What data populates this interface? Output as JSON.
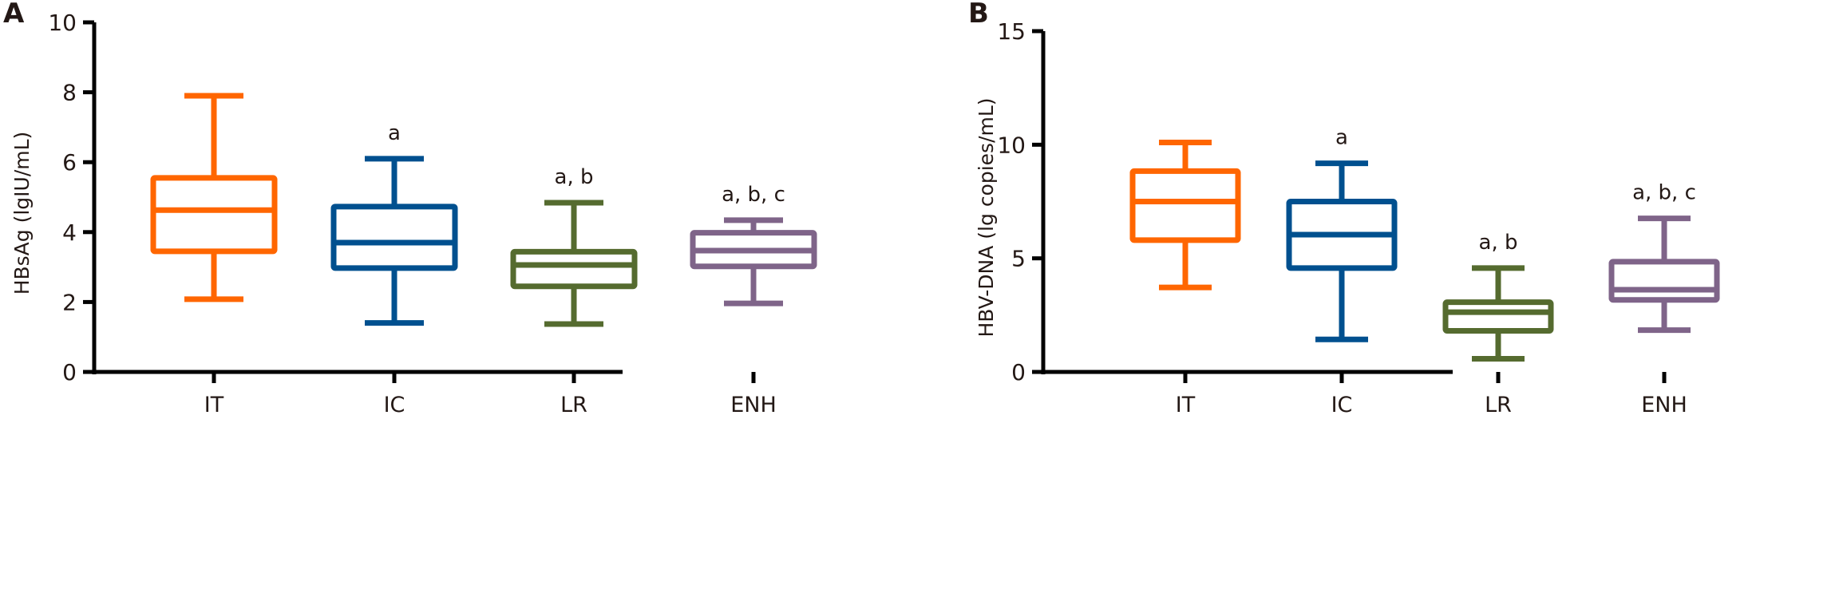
{
  "chart_data": [
    {
      "type": "box",
      "panel_label": "A",
      "title": "",
      "xlabel": "",
      "ylabel": "HBsAg (lgIU/mL)",
      "ylim": [
        0,
        10
      ],
      "yticks": [
        0,
        2,
        4,
        6,
        8,
        10
      ],
      "categories": [
        "IT",
        "IC",
        "LR",
        "ENH"
      ],
      "colors": [
        "#ff6600",
        "#00508f",
        "#556b2f",
        "#7f6489"
      ],
      "series": [
        {
          "name": "IT",
          "min": 2.08,
          "q1": 3.45,
          "median": 4.63,
          "q3": 5.55,
          "max": 7.9,
          "annotation": ""
        },
        {
          "name": "IC",
          "min": 1.4,
          "q1": 2.97,
          "median": 3.7,
          "q3": 4.73,
          "max": 6.1,
          "annotation": "a"
        },
        {
          "name": "LR",
          "min": 1.37,
          "q1": 2.45,
          "median": 3.06,
          "q3": 3.44,
          "max": 4.84,
          "annotation": "a, b"
        },
        {
          "name": "ENH",
          "min": 1.96,
          "q1": 3.02,
          "median": 3.47,
          "q3": 3.98,
          "max": 4.34,
          "annotation": "a, b, c"
        }
      ]
    },
    {
      "type": "box",
      "panel_label": "B",
      "title": "",
      "xlabel": "",
      "ylabel": "HBV-DNA (lg copies/mL)",
      "ylim": [
        0,
        15
      ],
      "yticks": [
        0,
        5,
        10,
        15
      ],
      "categories": [
        "IT",
        "IC",
        "LR",
        "ENH"
      ],
      "colors": [
        "#ff6600",
        "#00508f",
        "#556b2f",
        "#7f6489"
      ],
      "series": [
        {
          "name": "IT",
          "min": 3.72,
          "q1": 5.8,
          "median": 7.5,
          "q3": 8.84,
          "max": 10.1,
          "annotation": ""
        },
        {
          "name": "IC",
          "min": 1.43,
          "q1": 4.57,
          "median": 6.04,
          "q3": 7.5,
          "max": 9.18,
          "annotation": "a"
        },
        {
          "name": "LR",
          "min": 0.58,
          "q1": 1.81,
          "median": 2.63,
          "q3": 3.07,
          "max": 4.57,
          "annotation": "a, b"
        },
        {
          "name": "ENH",
          "min": 1.84,
          "q1": 3.17,
          "median": 3.62,
          "q3": 4.85,
          "max": 6.76,
          "annotation": "a, b, c"
        }
      ]
    }
  ]
}
